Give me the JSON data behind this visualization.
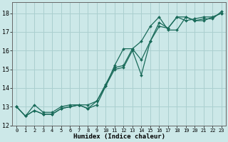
{
  "title": "",
  "xlabel": "Humidex (Indice chaleur)",
  "ylabel": "",
  "background_color": "#cce8e8",
  "grid_color": "#aacfcf",
  "line_color": "#1a6b5a",
  "xlim": [
    -0.5,
    23.5
  ],
  "ylim": [
    12,
    18.6
  ],
  "yticks": [
    12,
    13,
    14,
    15,
    16,
    17,
    18
  ],
  "xticks": [
    0,
    1,
    2,
    3,
    4,
    5,
    6,
    7,
    8,
    9,
    10,
    11,
    12,
    13,
    14,
    15,
    16,
    17,
    18,
    19,
    20,
    21,
    22,
    23
  ],
  "series": [
    [
      13.0,
      12.5,
      12.8,
      12.6,
      12.6,
      12.9,
      13.0,
      13.1,
      12.9,
      13.1,
      14.1,
      15.0,
      15.1,
      16.0,
      14.7,
      16.5,
      17.3,
      17.2,
      17.8,
      17.6,
      17.7,
      17.8,
      17.8,
      18.0
    ],
    [
      13.0,
      12.5,
      12.8,
      12.6,
      12.6,
      12.9,
      13.0,
      13.1,
      12.9,
      13.3,
      14.1,
      15.2,
      16.1,
      16.1,
      16.5,
      17.3,
      17.8,
      17.1,
      17.1,
      17.8,
      17.6,
      17.6,
      17.8,
      18.0
    ],
    [
      13.0,
      12.5,
      13.1,
      12.7,
      12.7,
      13.0,
      13.1,
      13.1,
      13.1,
      13.3,
      14.2,
      15.1,
      15.2,
      16.1,
      15.5,
      16.5,
      17.5,
      17.2,
      17.8,
      17.8,
      17.6,
      17.7,
      17.7,
      18.1
    ]
  ]
}
